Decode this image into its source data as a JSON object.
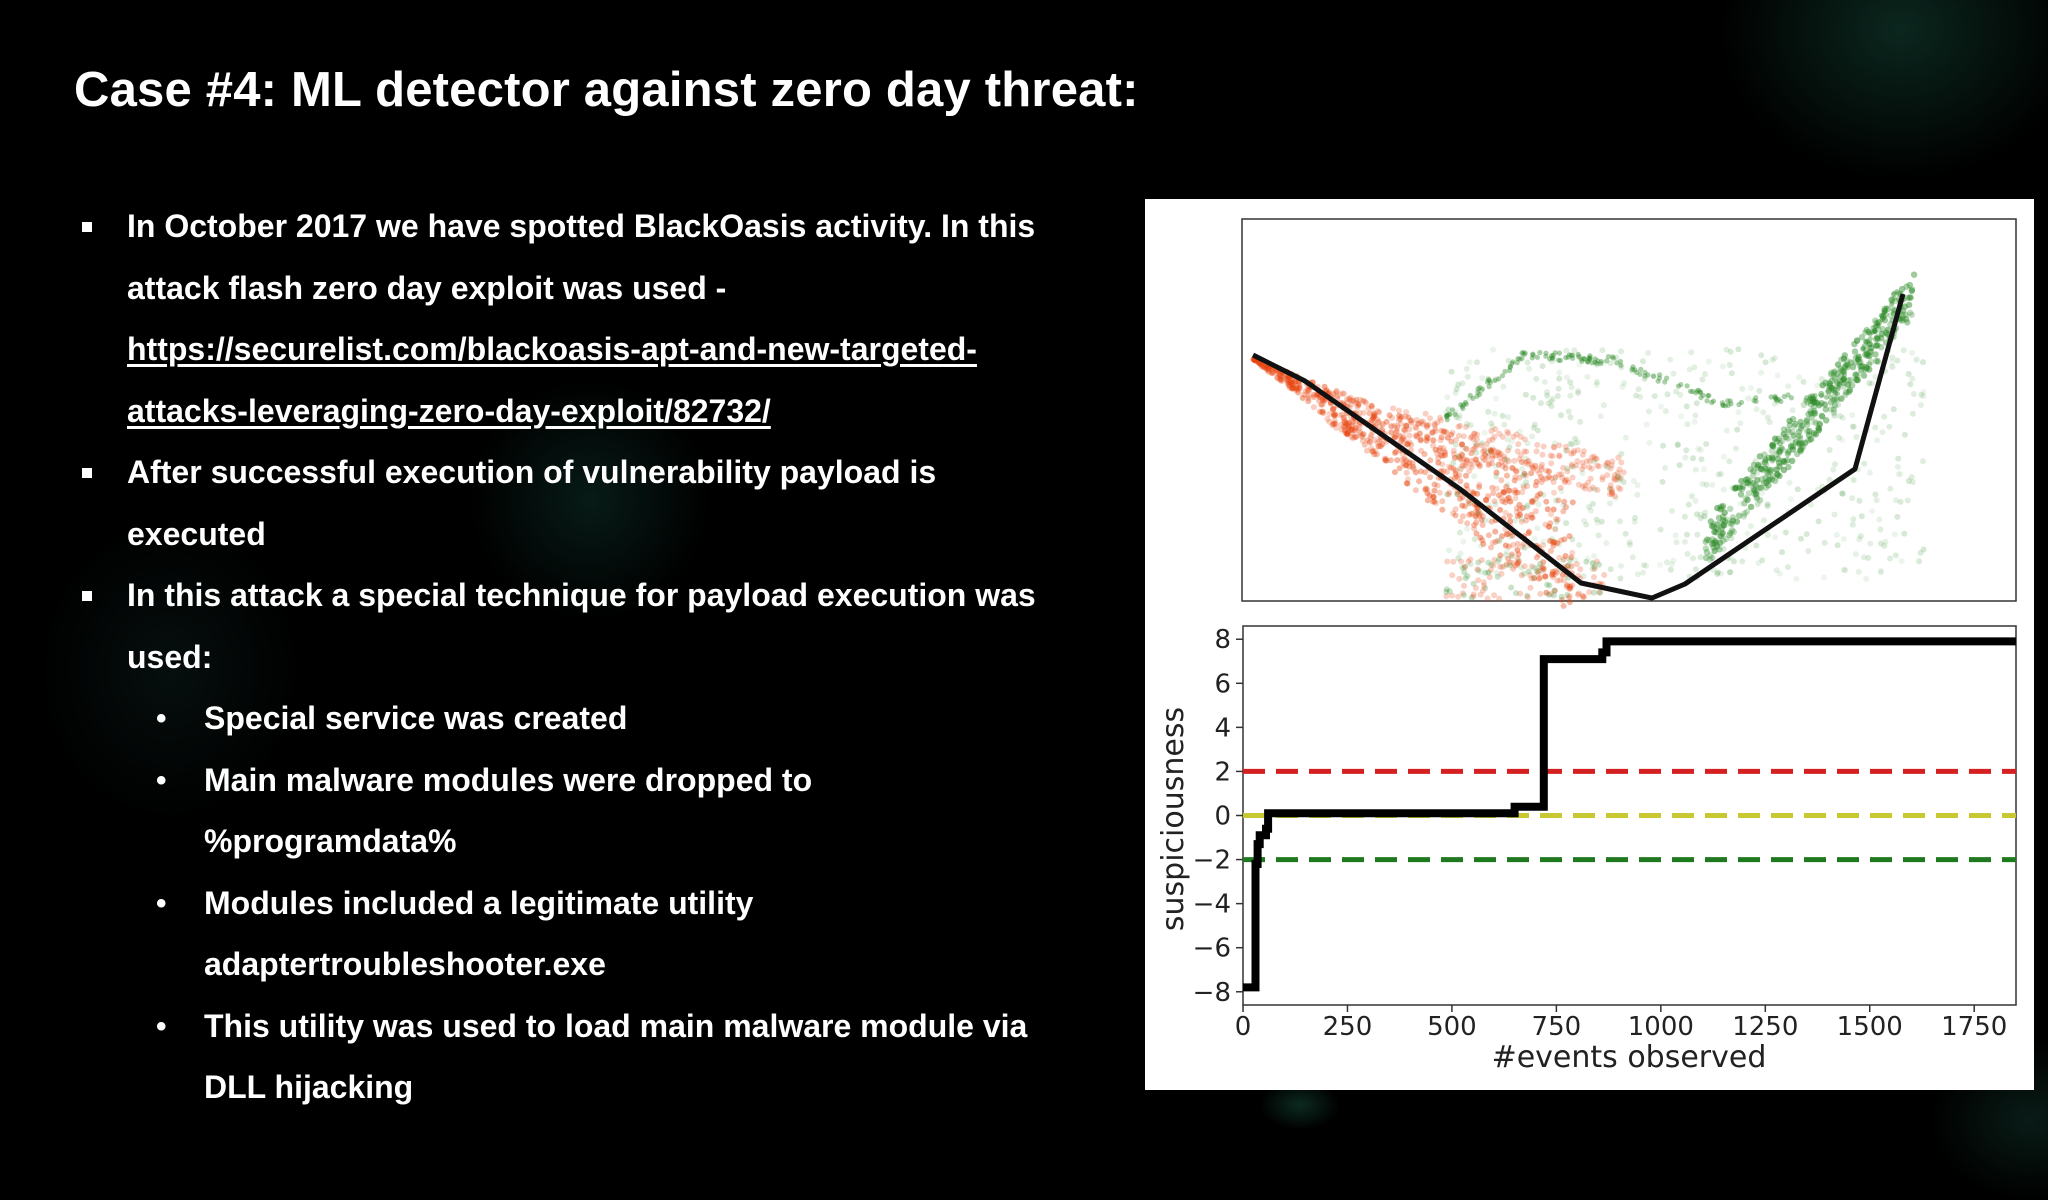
{
  "slide": {
    "title": "Case #4: ML detector against zero day threat:",
    "lines": [
      "In October 2017 we have spotted BlackOasis activity. In this",
      "attack flash zero day exploit was used -",
      "https://securelist.com/blackoasis-apt-and-new-targeted-",
      "attacks-leveraging-zero-day-exploit/82732/",
      "After successful execution of vulnerability payload is",
      "executed",
      "In this attack a special technique  for payload execution was",
      "used:",
      "Special service was created",
      "Main malware modules were dropped to",
      "%programdata%",
      "Modules included a legitimate utility",
      "adaptertroubleshooter.exe",
      "This utility was used to load main malware module via",
      "DLL hijacking"
    ],
    "markers": {
      "square": "▪",
      "dot": "•"
    }
  },
  "colors": {
    "background": "#000000",
    "text": "#ffffff",
    "malicious_points": "#e8450f",
    "benign_points": "#2a8a25",
    "trajectory": "#111111",
    "threshold_high": "#d42020",
    "threshold_mid": "#c8c832",
    "threshold_low": "#1f7a1f"
  },
  "chart_data": [
    {
      "type": "scatter",
      "title": "",
      "xlabel": "",
      "ylabel": "",
      "axes_ticks": "none",
      "series": [
        {
          "color": "#e8450f"
        },
        {
          "color": "#2a8a25"
        }
      ],
      "trajectory_color": "#111111"
    },
    {
      "type": "line",
      "xlabel": "#events observed",
      "ylabel": "suspiciousness",
      "xlim": [
        0,
        1850
      ],
      "ylim": [
        -8.6,
        8.6
      ],
      "xticks": [
        0,
        250,
        500,
        750,
        1000,
        1250,
        1500,
        1750
      ],
      "yticks": [
        -8,
        -6,
        -4,
        -2,
        0,
        2,
        4,
        6,
        8
      ],
      "tick_labels_x": [
        "0",
        "250",
        "500",
        "750",
        "1000",
        "1250",
        "1500",
        "1750"
      ],
      "tick_labels_y": [
        "−8",
        "−6",
        "−4",
        "−2",
        "0",
        "2",
        "4",
        "6",
        "8"
      ],
      "series": [
        {
          "style": "step",
          "color": "#000000",
          "points": [
            [
              0,
              -7.8
            ],
            [
              30,
              -7.8
            ],
            [
              30,
              -2.2
            ],
            [
              35,
              -2.2
            ],
            [
              35,
              -1.3
            ],
            [
              40,
              -1.3
            ],
            [
              40,
              -0.9
            ],
            [
              55,
              -0.9
            ],
            [
              55,
              -0.6
            ],
            [
              60,
              -0.6
            ],
            [
              60,
              0.1
            ],
            [
              650,
              0.1
            ],
            [
              650,
              0.4
            ],
            [
              720,
              0.4
            ],
            [
              720,
              7.1
            ],
            [
              860,
              7.1
            ],
            [
              860,
              7.4
            ],
            [
              870,
              7.4
            ],
            [
              870,
              7.9
            ],
            [
              1850,
              7.9
            ]
          ]
        }
      ],
      "thresholds": [
        {
          "y": 2,
          "color": "#d42020",
          "style": "dashed"
        },
        {
          "y": 0,
          "color": "#c8c832",
          "style": "dashed"
        },
        {
          "y": -2,
          "color": "#1f7a1f",
          "style": "dashed"
        }
      ],
      "grid": false
    }
  ]
}
